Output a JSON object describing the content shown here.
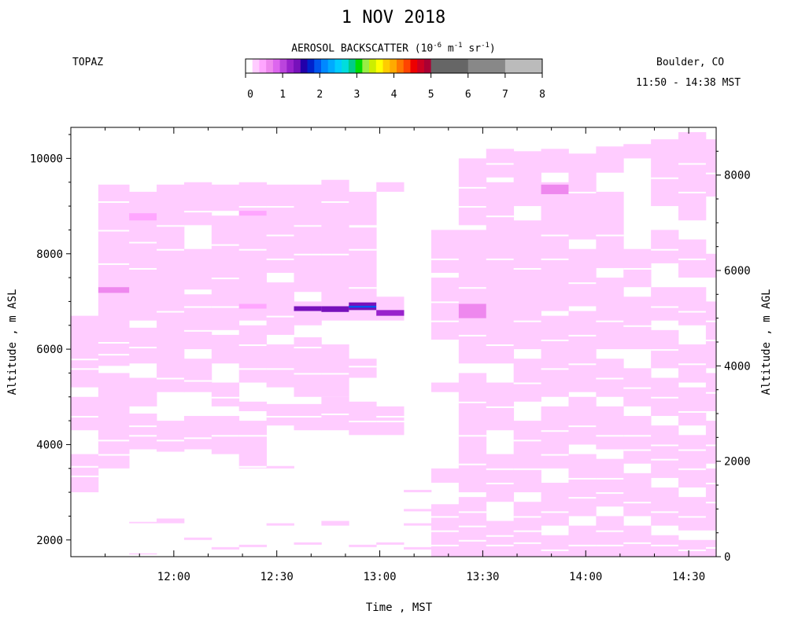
{
  "header": {
    "title": "1 NOV 2018",
    "site": "TOPAZ",
    "location": "Boulder, CO",
    "time_range": "11:50 - 14:38 MST"
  },
  "colorbar": {
    "title_prefix": "AEROSOL BACKSCATTER (10",
    "title_exp1": "-6",
    "title_mid": " m",
    "title_exp2": "-1",
    "title_mid2": " sr",
    "title_exp3": "-1",
    "title_suffix": ")",
    "tick_labels": [
      "0",
      "1",
      "2",
      "3",
      "4",
      "5",
      "6",
      "7",
      "8"
    ],
    "colors": [
      "#ffffff",
      "#ffccff",
      "#ffa6ff",
      "#ee88ee",
      "#dd66ee",
      "#bb44dd",
      "#9922cc",
      "#7711bb",
      "#2200aa",
      "#0022cc",
      "#0055ee",
      "#0088ff",
      "#00aaff",
      "#00ccff",
      "#00dddd",
      "#00cc88",
      "#00dd00",
      "#99ee44",
      "#ccee00",
      "#ffff00",
      "#ffcc00",
      "#ffaa00",
      "#ff7700",
      "#ff4400",
      "#ee0000",
      "#cc0022",
      "#aa0033",
      "#666666",
      "#888888",
      "#bbbbbb"
    ]
  },
  "chart_data": {
    "type": "heatmap",
    "title": "1 NOV 2018",
    "xlabel": "Time , MST",
    "ylabel_left": "Altitude , m ASL",
    "ylabel_right": "Altitude , m AGL",
    "xlim": [
      690,
      878
    ],
    "ylim_left": [
      1650,
      10650
    ],
    "ylim_right": [
      0,
      9000
    ],
    "xticks": [
      {
        "value": 720,
        "label": "12:00"
      },
      {
        "value": 750,
        "label": "12:30"
      },
      {
        "value": 780,
        "label": "13:00"
      },
      {
        "value": 810,
        "label": "13:30"
      },
      {
        "value": 840,
        "label": "14:00"
      },
      {
        "value": 870,
        "label": "14:30"
      }
    ],
    "yticks_left": [
      2000,
      4000,
      6000,
      8000,
      10000
    ],
    "yticks_right": [
      0,
      2000,
      4000,
      6000,
      8000
    ],
    "colorbar_range": [
      0,
      8
    ],
    "base_value": 0.3,
    "profiles": [
      {
        "start": 690,
        "end": 698,
        "layers": [
          [
            3000,
            3800
          ],
          [
            4300,
            5000
          ],
          [
            5200,
            6700
          ]
        ],
        "gaps": [
          3350,
          3550,
          4600,
          5600,
          5800
        ],
        "strong": []
      },
      {
        "start": 698,
        "end": 707,
        "layers": [
          [
            3500,
            5500
          ],
          [
            5650,
            9450
          ]
        ],
        "gaps": [
          3800,
          4100,
          5900,
          6150,
          7800,
          8500,
          9100
        ],
        "strong": [
          [
            7180,
            7300,
            1.0
          ]
        ]
      },
      {
        "start": 707,
        "end": 715,
        "layers": [
          [
            1700,
            1720
          ],
          [
            2350,
            2380
          ],
          [
            3900,
            4650
          ],
          [
            4800,
            5400
          ],
          [
            5700,
            6450
          ],
          [
            6600,
            9300
          ]
        ],
        "gaps": [
          4200,
          4400,
          6050,
          7700,
          8250,
          8750
        ],
        "strong": [
          [
            8700,
            8850,
            0.7
          ]
        ]
      },
      {
        "start": 715,
        "end": 723,
        "layers": [
          [
            2350,
            2450
          ],
          [
            3850,
            4500
          ],
          [
            5100,
            9450
          ]
        ],
        "gaps": [
          4100,
          5400,
          6800,
          8100,
          8600
        ],
        "strong": []
      },
      {
        "start": 723,
        "end": 731,
        "layers": [
          [
            2000,
            2050
          ],
          [
            3900,
            4600
          ],
          [
            5100,
            5800
          ],
          [
            6000,
            7150
          ],
          [
            7250,
            8100
          ],
          [
            8600,
            9500
          ]
        ],
        "gaps": [
          4150,
          5350,
          6400,
          6900,
          8900
        ],
        "strong": []
      },
      {
        "start": 731,
        "end": 739,
        "layers": [
          [
            1800,
            1850
          ],
          [
            3800,
            4600
          ],
          [
            4800,
            5300
          ],
          [
            5700,
            6300
          ],
          [
            6400,
            8800
          ],
          [
            8900,
            9450
          ]
        ],
        "gaps": [
          4200,
          5000,
          6900,
          7500,
          8200
        ],
        "strong": []
      },
      {
        "start": 739,
        "end": 747,
        "layers": [
          [
            1850,
            1900
          ],
          [
            3500,
            4500
          ],
          [
            4700,
            4900
          ],
          [
            5300,
            6500
          ],
          [
            6600,
            9500
          ]
        ],
        "gaps": [
          3550,
          4200,
          5600,
          6100,
          8100,
          9000
        ],
        "strong": [
          [
            6850,
            6950,
            0.6
          ],
          [
            8800,
            8900,
            0.6
          ]
        ]
      },
      {
        "start": 747,
        "end": 755,
        "layers": [
          [
            2300,
            2350
          ],
          [
            3500,
            3550
          ],
          [
            4400,
            4850
          ],
          [
            5200,
            6100
          ],
          [
            6300,
            7400
          ],
          [
            7600,
            9450
          ]
        ],
        "gaps": [
          4600,
          5600,
          6700,
          7900,
          8400,
          9000
        ],
        "strong": []
      },
      {
        "start": 755,
        "end": 763,
        "layers": [
          [
            1900,
            1950
          ],
          [
            4300,
            4850
          ],
          [
            5000,
            6250
          ],
          [
            6500,
            7000
          ],
          [
            7200,
            9450
          ]
        ],
        "gaps": [
          4600,
          5500,
          6050,
          8000,
          8600
        ],
        "strong": [
          [
            6800,
            6900,
            2.0
          ]
        ]
      },
      {
        "start": 763,
        "end": 771,
        "layers": [
          [
            2300,
            2400
          ],
          [
            4300,
            5000
          ],
          [
            5000,
            6100
          ],
          [
            6600,
            9550
          ]
        ],
        "gaps": [
          4650,
          5500,
          8000,
          9100
        ],
        "strong": [
          [
            6780,
            6900,
            2.0
          ]
        ]
      },
      {
        "start": 771,
        "end": 779,
        "layers": [
          [
            1850,
            1900
          ],
          [
            4200,
            4900
          ],
          [
            5400,
            5800
          ],
          [
            6600,
            8550
          ],
          [
            8600,
            9300
          ]
        ],
        "gaps": [
          4500,
          5650,
          7300,
          8100
        ],
        "strong": [
          [
            6820,
            6980,
            2.0
          ],
          [
            6870,
            6910,
            2.9
          ]
        ]
      },
      {
        "start": 779,
        "end": 787,
        "layers": [
          [
            1900,
            1950
          ],
          [
            4200,
            4800
          ],
          [
            6600,
            7100
          ],
          [
            9300,
            9500
          ]
        ],
        "gaps": [
          4500,
          4600
        ],
        "strong": [
          [
            6700,
            6820,
            1.8
          ]
        ]
      },
      {
        "start": 787,
        "end": 795,
        "layers": [
          [
            1800,
            1850
          ],
          [
            2300,
            2350
          ],
          [
            2600,
            2650
          ],
          [
            3000,
            3050
          ]
        ],
        "gaps": [],
        "strong": []
      },
      {
        "start": 795,
        "end": 803,
        "layers": [
          [
            1650,
            2750
          ],
          [
            3200,
            3500
          ],
          [
            5100,
            5300
          ],
          [
            6200,
            7500
          ],
          [
            7600,
            8500
          ]
        ],
        "gaps": [
          1900,
          2200,
          2500,
          6600,
          7000,
          7900
        ],
        "strong": []
      },
      {
        "start": 803,
        "end": 811,
        "layers": [
          [
            1650,
            2900
          ],
          [
            3000,
            5500
          ],
          [
            5700,
            8500
          ],
          [
            8600,
            10000
          ]
        ],
        "gaps": [
          2000,
          2300,
          2600,
          3600,
          4200,
          4900,
          6300,
          7300,
          9000,
          9400
        ],
        "strong": [
          [
            6650,
            6950,
            0.9
          ]
        ]
      },
      {
        "start": 811,
        "end": 819,
        "layers": [
          [
            1650,
            2400
          ],
          [
            2800,
            3800
          ],
          [
            4300,
            5300
          ],
          [
            5700,
            9500
          ],
          [
            9600,
            10200
          ]
        ],
        "gaps": [
          1900,
          2100,
          3200,
          3500,
          4800,
          6100,
          7900,
          8800,
          9900
        ],
        "strong": []
      },
      {
        "start": 819,
        "end": 827,
        "layers": [
          [
            1650,
            2800
          ],
          [
            3000,
            4500
          ],
          [
            4900,
            5800
          ],
          [
            6000,
            8700
          ],
          [
            9000,
            10150
          ]
        ],
        "gaps": [
          1950,
          2200,
          2500,
          3500,
          4100,
          5300,
          6600,
          7700
        ],
        "strong": []
      },
      {
        "start": 827,
        "end": 835,
        "layers": [
          [
            1650,
            2100
          ],
          [
            2300,
            3200
          ],
          [
            3500,
            4800
          ],
          [
            5000,
            6700
          ],
          [
            6800,
            9500
          ],
          [
            9700,
            10200
          ]
        ],
        "gaps": [
          1800,
          2600,
          3800,
          4300,
          5600,
          6200,
          7900,
          8400
        ],
        "strong": [
          [
            9250,
            9450,
            0.8
          ]
        ]
      },
      {
        "start": 835,
        "end": 843,
        "layers": [
          [
            1650,
            2300
          ],
          [
            2500,
            3800
          ],
          [
            4000,
            5000
          ],
          [
            5100,
            6800
          ],
          [
            6900,
            8100
          ],
          [
            8300,
            10100
          ]
        ],
        "gaps": [
          1900,
          2900,
          3300,
          4400,
          5700,
          6300,
          7400,
          9300
        ],
        "strong": []
      },
      {
        "start": 843,
        "end": 851,
        "layers": [
          [
            1650,
            2500
          ],
          [
            2700,
            3700
          ],
          [
            3900,
            4800
          ],
          [
            5000,
            5800
          ],
          [
            6000,
            7500
          ],
          [
            7700,
            9300
          ],
          [
            9700,
            10250
          ]
        ],
        "gaps": [
          1900,
          2200,
          3000,
          3300,
          4200,
          5400,
          6600,
          8400
        ],
        "strong": []
      },
      {
        "start": 851,
        "end": 859,
        "layers": [
          [
            1650,
            2300
          ],
          [
            2500,
            3400
          ],
          [
            3600,
            4600
          ],
          [
            4800,
            5600
          ],
          [
            6000,
            7100
          ],
          [
            7300,
            8100
          ],
          [
            10000,
            10300
          ]
        ],
        "gaps": [
          1950,
          2800,
          3900,
          4200,
          5200,
          6500,
          7700
        ],
        "strong": []
      },
      {
        "start": 859,
        "end": 867,
        "layers": [
          [
            1650,
            2100
          ],
          [
            2300,
            3100
          ],
          [
            3300,
            4400
          ],
          [
            4600,
            5400
          ],
          [
            5600,
            6400
          ],
          [
            6600,
            7300
          ],
          [
            7800,
            8500
          ],
          [
            9000,
            10400
          ]
        ],
        "gaps": [
          1900,
          2600,
          3700,
          4000,
          5000,
          6000,
          6900,
          8100,
          9600
        ],
        "strong": []
      },
      {
        "start": 867,
        "end": 875,
        "layers": [
          [
            1650,
            2000
          ],
          [
            2200,
            2900
          ],
          [
            3100,
            4200
          ],
          [
            4400,
            5200
          ],
          [
            5300,
            6100
          ],
          [
            6500,
            7300
          ],
          [
            7500,
            8300
          ],
          [
            8700,
            10550
          ]
        ],
        "gaps": [
          1800,
          2500,
          3500,
          3900,
          4700,
          5700,
          6800,
          7900,
          9300,
          9900
        ],
        "strong": []
      },
      {
        "start": 875,
        "end": 878,
        "layers": [
          [
            1650,
            2000
          ],
          [
            2200,
            3500
          ],
          [
            3600,
            4500
          ],
          [
            4700,
            5500
          ],
          [
            5600,
            7000
          ],
          [
            7500,
            8000
          ],
          [
            9200,
            10400
          ]
        ],
        "gaps": [
          1850,
          2800,
          3200,
          4000,
          5100,
          6200,
          6600,
          9700
        ],
        "strong": []
      }
    ]
  }
}
